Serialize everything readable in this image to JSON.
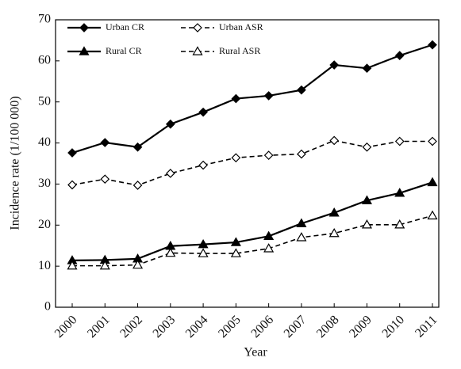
{
  "chart_data": {
    "type": "line",
    "x_label": "Year",
    "y_label": "Incidence rate (1/100 000)",
    "categories": [
      "2000",
      "2001",
      "2002",
      "2003",
      "2004",
      "2005",
      "2006",
      "2007",
      "2008",
      "2009",
      "2010",
      "2011"
    ],
    "series": [
      {
        "name": "Urban CR",
        "color": "#000000",
        "marker": "diamond",
        "filled": true,
        "dashed": false,
        "values": [
          37.6,
          40.1,
          39.0,
          44.6,
          47.5,
          50.8,
          51.5,
          52.9,
          59.0,
          58.2,
          61.3,
          63.9
        ]
      },
      {
        "name": "Urban ASR",
        "color": "#000000",
        "marker": "diamond",
        "filled": false,
        "dashed": true,
        "values": [
          29.8,
          31.2,
          29.7,
          32.6,
          34.6,
          36.4,
          37.0,
          37.3,
          40.6,
          39.0,
          40.4,
          40.4
        ]
      },
      {
        "name": "Rural CR",
        "color": "#000000",
        "marker": "triangle",
        "filled": true,
        "dashed": false,
        "values": [
          11.4,
          11.5,
          11.8,
          14.9,
          15.3,
          15.8,
          17.3,
          20.4,
          23.0,
          26.0,
          27.8,
          30.4
        ]
      },
      {
        "name": "Rural ASR",
        "color": "#000000",
        "marker": "triangle",
        "filled": false,
        "dashed": true,
        "values": [
          10.1,
          10.1,
          10.3,
          13.2,
          13.1,
          13.1,
          14.3,
          17.0,
          18.0,
          20.1,
          20.1,
          22.3
        ]
      }
    ],
    "ylim": [
      0,
      70
    ],
    "yticks": [
      0,
      10,
      20,
      30,
      40,
      50,
      60,
      70
    ],
    "grid": false,
    "legend": "top-left"
  }
}
